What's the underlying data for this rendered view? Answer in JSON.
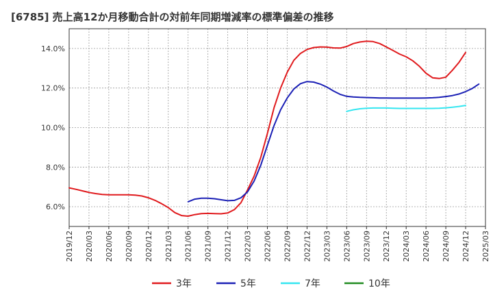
{
  "chart_data": {
    "type": "line",
    "title": "[6785]  売上高12か月移動合計の対前年同期増減率の標準偏差の推移",
    "xlabel": "",
    "ylabel": "",
    "ylim": [
      5.0,
      15.0
    ],
    "y_ticks": [
      6.0,
      8.0,
      10.0,
      12.0,
      14.0
    ],
    "y_tick_labels": [
      "6.0%",
      "8.0%",
      "10.0%",
      "12.0%",
      "14.0%"
    ],
    "x_tick_labels": [
      "2019/12",
      "2020/03",
      "2020/06",
      "2020/09",
      "2020/12",
      "2021/03",
      "2021/06",
      "2021/09",
      "2021/12",
      "2022/03",
      "2022/06",
      "2022/09",
      "2022/12",
      "2023/03",
      "2023/06",
      "2023/09",
      "2023/12",
      "2024/03",
      "2024/06",
      "2024/09",
      "2024/12",
      "2025/03"
    ],
    "grid": true,
    "legend_position": "bottom",
    "series": [
      {
        "name": "3年",
        "color": "#e0191c",
        "start_index": 0,
        "values": [
          6.95,
          6.88,
          6.8,
          6.72,
          6.66,
          6.62,
          6.6,
          6.6,
          6.6,
          6.6,
          6.58,
          6.54,
          6.45,
          6.32,
          6.15,
          5.95,
          5.7,
          5.55,
          5.52,
          5.6,
          5.65,
          5.66,
          5.65,
          5.64,
          5.68,
          5.85,
          6.2,
          6.85,
          7.55,
          8.5,
          9.7,
          11.0,
          12.0,
          12.8,
          13.4,
          13.75,
          13.95,
          14.05,
          14.08,
          14.07,
          14.03,
          14.02,
          14.1,
          14.25,
          14.33,
          14.37,
          14.35,
          14.25,
          14.08,
          13.9,
          13.72,
          13.58,
          13.38,
          13.1,
          12.75,
          12.52,
          12.48,
          12.55,
          12.9,
          13.3,
          13.8
        ]
      },
      {
        "name": "5年",
        "color": "#1a1fb5",
        "start_index": 18,
        "values": [
          6.25,
          6.38,
          6.43,
          6.43,
          6.4,
          6.35,
          6.3,
          6.32,
          6.45,
          6.75,
          7.3,
          8.1,
          9.1,
          10.1,
          10.9,
          11.5,
          11.95,
          12.22,
          12.33,
          12.3,
          12.2,
          12.05,
          11.85,
          11.68,
          11.58,
          11.55,
          11.53,
          11.52,
          11.51,
          11.5,
          11.5,
          11.49,
          11.49,
          11.49,
          11.49,
          11.49,
          11.5,
          11.51,
          11.53,
          11.57,
          11.62,
          11.7,
          11.82,
          11.98,
          12.2
        ]
      },
      {
        "name": "7年",
        "color": "#33e6f0",
        "start_index": 42,
        "values": [
          10.82,
          10.9,
          10.95,
          10.98,
          10.99,
          10.99,
          10.99,
          10.98,
          10.97,
          10.97,
          10.97,
          10.97,
          10.97,
          10.97,
          10.98,
          11.0,
          11.03,
          11.07,
          11.12
        ]
      },
      {
        "name": "10年",
        "color": "#1f8a1f",
        "start_index": 0,
        "values": []
      }
    ]
  }
}
